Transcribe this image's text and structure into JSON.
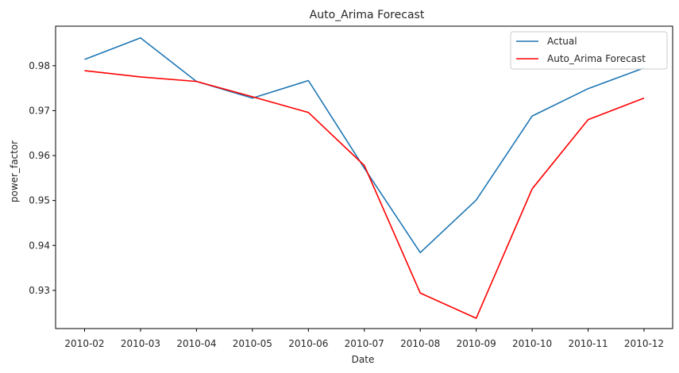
{
  "chart_data": {
    "type": "line",
    "title": "Auto_Arima Forecast",
    "xlabel": "Date",
    "ylabel": "power_factor",
    "categories": [
      "2010-02",
      "2010-03",
      "2010-04",
      "2010-05",
      "2010-06",
      "2010-07",
      "2010-08",
      "2010-09",
      "2010-10",
      "2010-11",
      "2010-12"
    ],
    "yticks": [
      0.93,
      0.94,
      0.95,
      0.96,
      0.97,
      0.98
    ],
    "ylim": [
      0.9215,
      0.9888
    ],
    "grid": false,
    "legend_position": "top-right",
    "series": [
      {
        "name": "Actual",
        "color": "#1f77b4",
        "values": [
          0.9814,
          0.9862,
          0.9765,
          0.9728,
          0.9767,
          0.9572,
          0.9384,
          0.9501,
          0.9688,
          0.9749,
          0.9795
        ]
      },
      {
        "name": "Auto_Arima Forecast",
        "color": "#ff0000",
        "values": [
          0.9789,
          0.9775,
          0.9765,
          0.9731,
          0.9696,
          0.9578,
          0.9294,
          0.9238,
          0.9526,
          0.968,
          0.9728
        ]
      }
    ]
  }
}
